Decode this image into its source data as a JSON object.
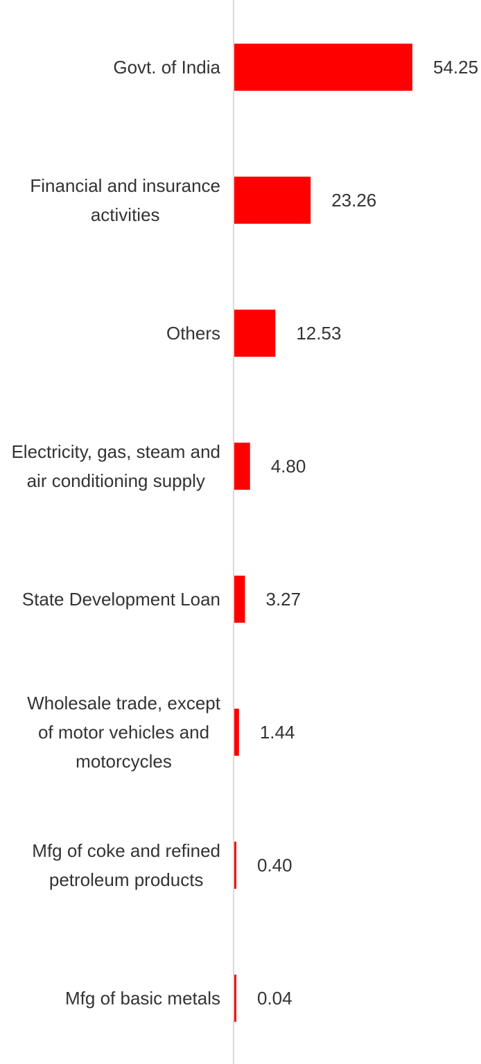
{
  "chart_data": {
    "type": "bar",
    "orientation": "horizontal",
    "categories": [
      [
        "Govt. of India"
      ],
      [
        "Financial and insurance",
        "activities"
      ],
      [
        "Others"
      ],
      [
        "Electricity, gas, steam and",
        "air conditioning supply"
      ],
      [
        "State Development Loan"
      ],
      [
        "Wholesale trade, except",
        "of motor vehicles and",
        "motorcycles"
      ],
      [
        "Mfg of coke and refined",
        "petroleum products"
      ],
      [
        "Mfg of basic metals"
      ]
    ],
    "values": [
      54.25,
      23.26,
      12.53,
      4.8,
      3.27,
      1.44,
      0.4,
      0.04
    ],
    "value_labels": [
      "54.25",
      "23.26",
      "12.53",
      "4.80",
      "3.27",
      "1.44",
      "0.40",
      "0.04"
    ],
    "xlim": [
      0,
      54.25
    ],
    "bar_color": "#ff0000",
    "axis_color": "#d9d9d9",
    "text_color": "#333333",
    "grid": false,
    "legend": "none"
  }
}
